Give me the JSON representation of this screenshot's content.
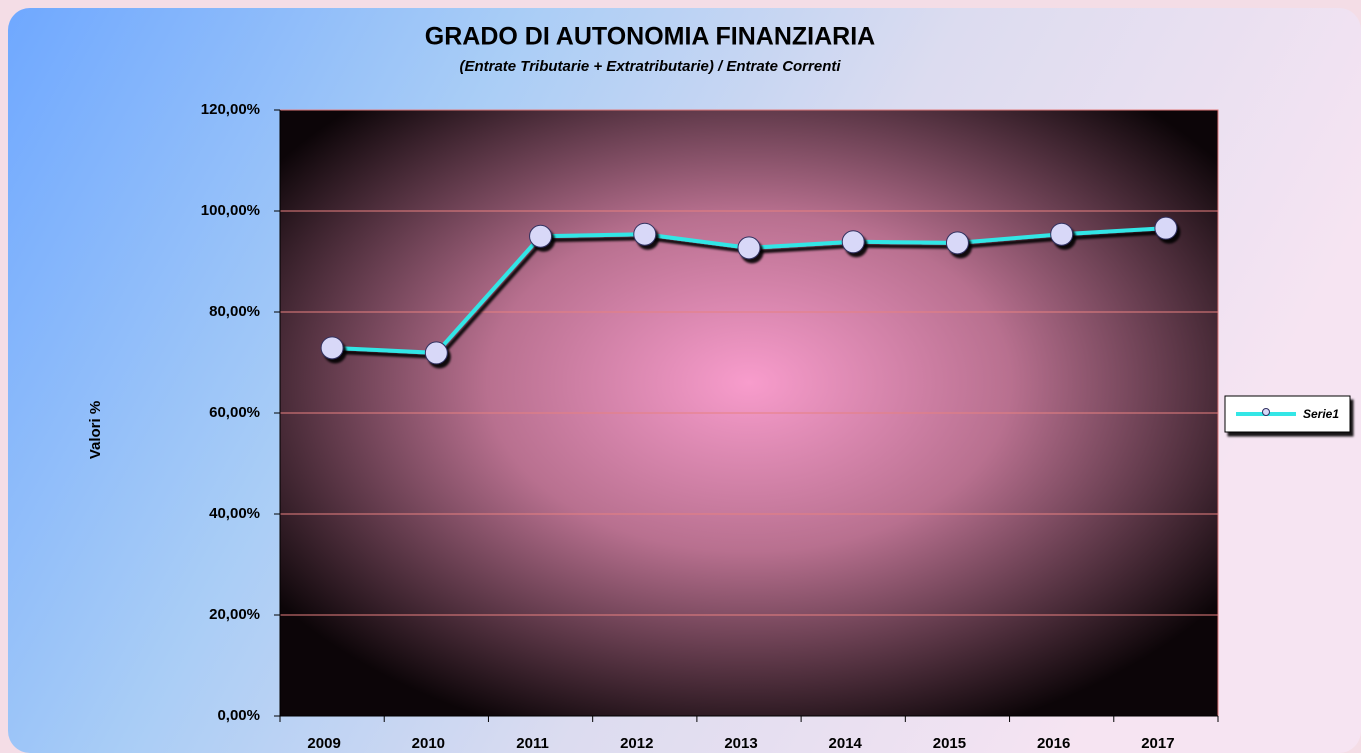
{
  "chart_data": {
    "type": "line",
    "title": "GRADO DI AUTONOMIA FINANZIARIA",
    "subtitle": "(Entrate Tributarie + Extratributarie)  / Entrate Correnti",
    "y_label": "Valori %",
    "categories": [
      "2009",
      "2010",
      "2011",
      "2012",
      "2013",
      "2014",
      "2015",
      "2016",
      "2017"
    ],
    "series": [
      {
        "name": "Serie1",
        "color": "#33e6e6",
        "marker_color": "#d8d8f8",
        "values": [
          72.9,
          71.9,
          95.0,
          95.4,
          92.7,
          93.9,
          93.7,
          95.4,
          96.6
        ]
      }
    ],
    "ylim": [
      0,
      120
    ],
    "yticks": [
      {
        "value": 0,
        "label": "0,00%"
      },
      {
        "value": 20,
        "label": "20,00%"
      },
      {
        "value": 40,
        "label": "40,00%"
      },
      {
        "value": 60,
        "label": "60,00%"
      },
      {
        "value": 80,
        "label": "80,00%"
      },
      {
        "value": 100,
        "label": "100,00%"
      },
      {
        "value": 120,
        "label": "120,00%"
      }
    ],
    "grid": true,
    "legend": "right"
  }
}
